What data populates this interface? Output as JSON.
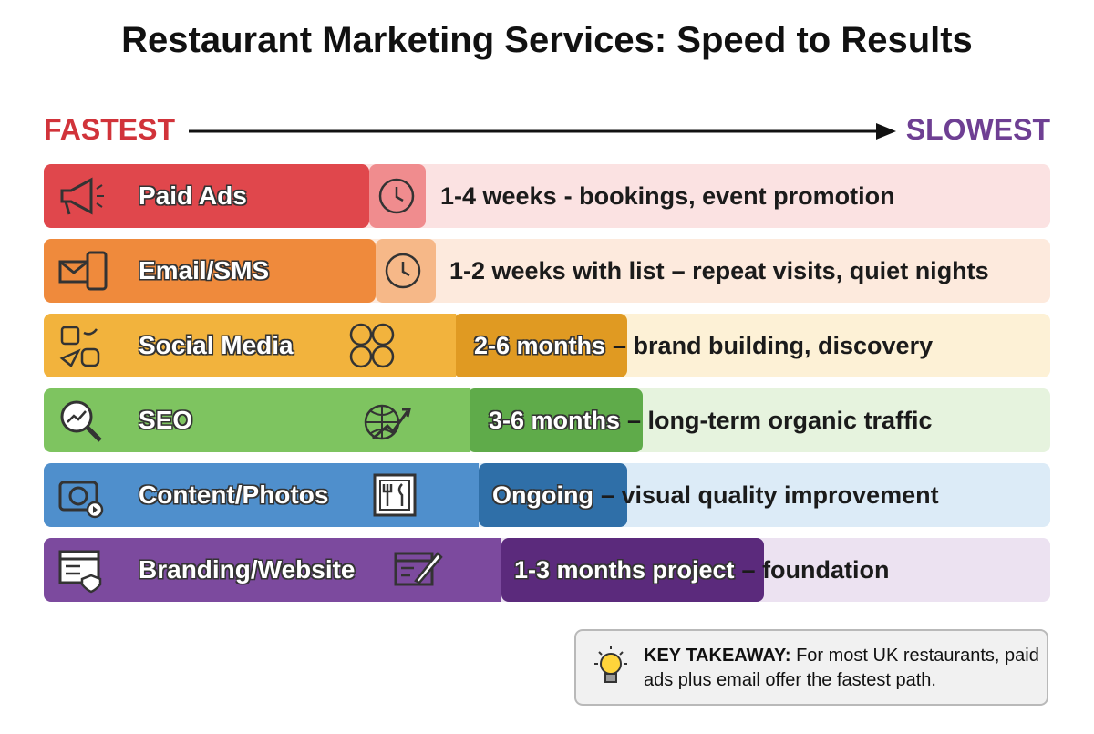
{
  "header": {
    "title": "Restaurant Marketing Services: Speed to Results"
  },
  "scale": {
    "start": "FASTEST",
    "end": "SLOWEST"
  },
  "rows": [
    {
      "service": "Paid Ads",
      "timeframe": "1-4 weeks",
      "detail": "- bookings, event promotion"
    },
    {
      "service": "Email/SMS",
      "timeframe": "1-2 weeks with list",
      "detail": "– repeat visits, quiet nights"
    },
    {
      "service": "Social Media",
      "timeframe": "2-6 months",
      "detail": "– brand building, discovery"
    },
    {
      "service": "SEO",
      "timeframe": "3-6 months",
      "detail": "– long-term organic traffic"
    },
    {
      "service": "Content/Photos",
      "timeframe": "Ongoing",
      "detail": "– visual quality improvement"
    },
    {
      "service": "Branding/Website",
      "timeframe": "1-3 months project",
      "detail": "– foundation"
    }
  ],
  "takeaway": {
    "label": "KEY TAKEAWAY:",
    "text": "For most UK restaurants, paid ads plus email offer the fastest path."
  }
}
